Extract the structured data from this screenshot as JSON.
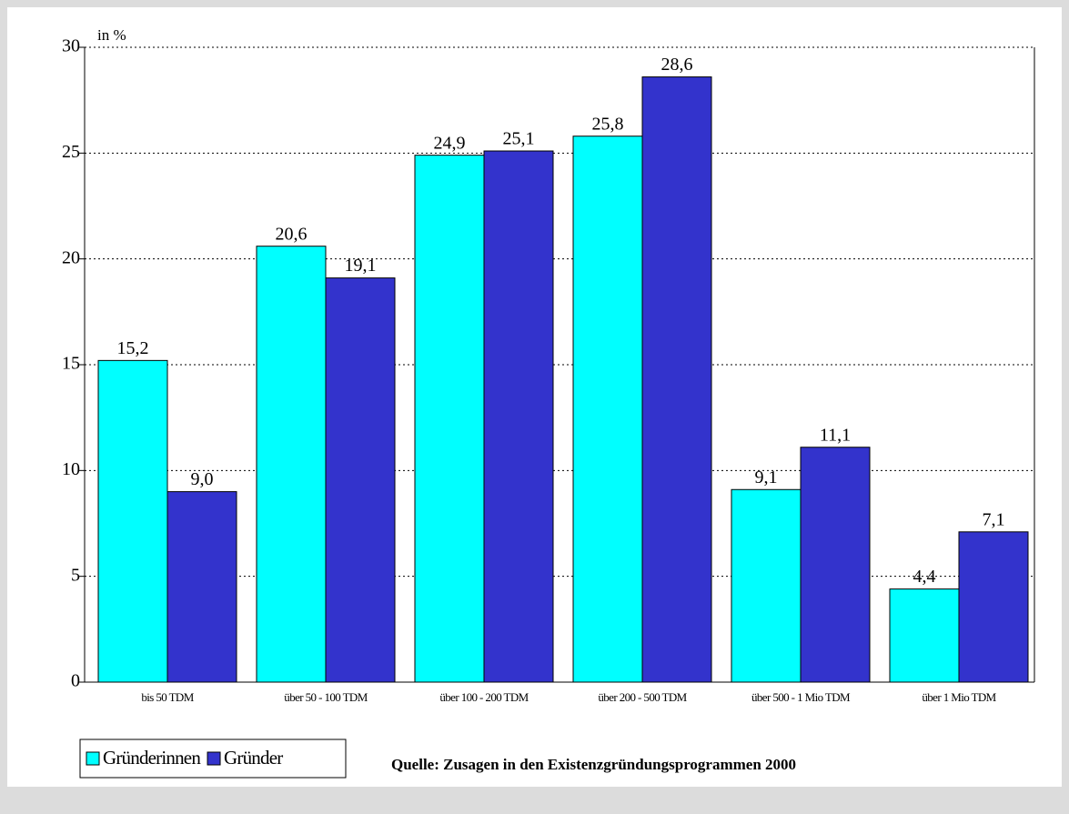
{
  "chart_data": {
    "type": "bar",
    "y_label": "in %",
    "categories": [
      "bis 50 TDM",
      "über 50 - 100 TDM",
      "über 100 - 200 TDM",
      "über 200 - 500 TDM",
      "über 500 - 1 Mio TDM",
      "über 1 Mio TDM"
    ],
    "series": [
      {
        "name": "Gründerinnen",
        "color": "#00ffff",
        "values": [
          15.2,
          20.6,
          24.9,
          25.8,
          9.1,
          4.4
        ],
        "value_labels": [
          "15,2",
          "20,6",
          "24,9",
          "25,8",
          "9,1",
          "4,4"
        ]
      },
      {
        "name": "Gründer",
        "color": "#3333cc",
        "values": [
          9.0,
          19.1,
          25.1,
          28.6,
          11.1,
          7.1
        ],
        "value_labels": [
          "9,0",
          "19,1",
          "25,1",
          "28,6",
          "11,1",
          "7,1"
        ]
      }
    ],
    "ylim": [
      0,
      30
    ],
    "yticks": [
      0,
      5,
      10,
      15,
      20,
      25,
      30
    ],
    "grid": true,
    "source": "Quelle: Zusagen in den Existenzgründungsprogrammen 2000"
  }
}
